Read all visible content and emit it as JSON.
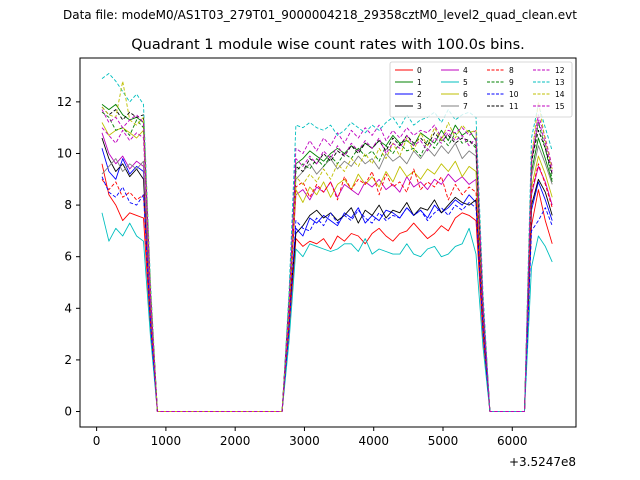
{
  "figure": {
    "supertitle": "Data file: modeM0/AS1T03_279T01_9000004218_29358cztM0_level2_quad_clean.evt"
  },
  "chart_data": {
    "type": "line",
    "title": "Quadrant 1 module wise count rates with 100.0s bins.",
    "xlabel": "",
    "ylabel": "",
    "x_offset_label": "+3.5247e8",
    "xlim": [
      -240,
      6920
    ],
    "ylim": [
      -0.6,
      13.7
    ],
    "xticks": [
      0,
      1000,
      2000,
      3000,
      4000,
      5000,
      6000
    ],
    "yticks": [
      0,
      2,
      4,
      6,
      8,
      10,
      12
    ],
    "grid": false,
    "legend": {
      "placement": "top-right",
      "columns": 4
    },
    "x": [
      77,
      177,
      277,
      377,
      477,
      577,
      677,
      777,
      877,
      977,
      1077,
      1177,
      1277,
      1377,
      1477,
      1577,
      1677,
      1777,
      1877,
      1977,
      2077,
      2177,
      2277,
      2377,
      2477,
      2577,
      2677,
      2777,
      2877,
      2977,
      3077,
      3177,
      3277,
      3377,
      3477,
      3577,
      3677,
      3777,
      3877,
      3977,
      4077,
      4177,
      4277,
      4377,
      4477,
      4577,
      4677,
      4777,
      4877,
      4977,
      5077,
      5177,
      5277,
      5377,
      5477,
      5577,
      5677,
      5777,
      5877,
      5977,
      6077,
      6177,
      6277,
      6377,
      6477,
      6577
    ],
    "series": [
      {
        "name": "0",
        "color": "#ff0000",
        "dash": "solid",
        "values": [
          9.6,
          8.4,
          8.0,
          7.4,
          7.7,
          7.6,
          7.5,
          3.2,
          0,
          0,
          0,
          0,
          0,
          0,
          0,
          0,
          0,
          0,
          0,
          0,
          0,
          0,
          0,
          0,
          0,
          0,
          0,
          3.1,
          6.7,
          6.4,
          6.6,
          6.5,
          6.7,
          6.3,
          6.8,
          6.6,
          6.9,
          6.8,
          6.5,
          6.9,
          7.1,
          6.8,
          6.6,
          6.9,
          7.0,
          7.3,
          7.0,
          6.7,
          6.9,
          7.2,
          7.0,
          7.5,
          7.7,
          7.6,
          7.4,
          2.9,
          0,
          0,
          0,
          0,
          0,
          0,
          7.2,
          8.6,
          7.4,
          6.5
        ]
      },
      {
        "name": "1",
        "color": "#008000",
        "dash": "solid",
        "values": [
          11.9,
          11.7,
          11.9,
          11.5,
          11.3,
          11.4,
          11.2,
          4.6,
          0,
          0,
          0,
          0,
          0,
          0,
          0,
          0,
          0,
          0,
          0,
          0,
          0,
          0,
          0,
          0,
          0,
          0,
          0,
          4.2,
          9.6,
          9.8,
          10.1,
          9.9,
          9.7,
          10.0,
          10.2,
          10.0,
          10.3,
          10.1,
          10.4,
          10.2,
          10.5,
          10.3,
          10.7,
          10.4,
          10.5,
          10.3,
          10.8,
          10.6,
          10.4,
          10.9,
          10.5,
          11.1,
          10.7,
          10.9,
          10.5,
          4.0,
          0,
          0,
          0,
          0,
          0,
          0,
          9.3,
          10.6,
          9.8,
          8.9
        ]
      },
      {
        "name": "2",
        "color": "#0000ff",
        "dash": "solid",
        "values": [
          10.2,
          9.3,
          9.0,
          9.8,
          9.2,
          9.5,
          9.3,
          3.8,
          0,
          0,
          0,
          0,
          0,
          0,
          0,
          0,
          0,
          0,
          0,
          0,
          0,
          0,
          0,
          0,
          0,
          0,
          0,
          3.6,
          7.1,
          6.8,
          7.5,
          7.3,
          7.6,
          7.4,
          7.2,
          7.7,
          7.5,
          7.9,
          7.3,
          7.6,
          7.4,
          7.8,
          7.7,
          7.5,
          7.9,
          7.6,
          7.8,
          7.5,
          8.0,
          7.7,
          7.9,
          8.2,
          8.0,
          8.4,
          8.1,
          3.4,
          0,
          0,
          0,
          0,
          0,
          0,
          7.8,
          8.9,
          8.2,
          7.4
        ]
      },
      {
        "name": "3",
        "color": "#000000",
        "dash": "solid",
        "values": [
          10.6,
          9.8,
          9.3,
          9.6,
          9.1,
          9.4,
          9.0,
          3.9,
          0,
          0,
          0,
          0,
          0,
          0,
          0,
          0,
          0,
          0,
          0,
          0,
          0,
          0,
          0,
          0,
          0,
          0,
          0,
          3.7,
          6.9,
          7.2,
          7.6,
          7.8,
          7.5,
          7.7,
          7.4,
          7.6,
          7.9,
          7.3,
          7.8,
          7.6,
          8.0,
          7.5,
          7.8,
          7.7,
          8.1,
          7.6,
          7.9,
          7.8,
          8.2,
          7.7,
          8.0,
          8.3,
          8.1,
          8.0,
          8.2,
          3.5,
          0,
          0,
          0,
          0,
          0,
          0,
          8.0,
          9.0,
          8.5,
          7.6
        ]
      },
      {
        "name": "4",
        "color": "#bf00bf",
        "dash": "solid",
        "values": [
          10.8,
          10.0,
          9.6,
          9.9,
          9.4,
          9.7,
          9.5,
          4.0,
          0,
          0,
          0,
          0,
          0,
          0,
          0,
          0,
          0,
          0,
          0,
          0,
          0,
          0,
          0,
          0,
          0,
          0,
          0,
          3.8,
          8.4,
          8.6,
          8.2,
          8.7,
          8.5,
          8.9,
          8.3,
          8.8,
          8.6,
          8.4,
          8.9,
          8.7,
          9.0,
          8.6,
          8.8,
          8.5,
          9.1,
          8.7,
          8.9,
          8.6,
          9.0,
          8.8,
          9.2,
          8.9,
          9.1,
          8.8,
          9.0,
          3.7,
          0,
          0,
          0,
          0,
          0,
          0,
          8.4,
          9.5,
          8.9,
          8.0
        ]
      },
      {
        "name": "5",
        "color": "#00bfbf",
        "dash": "solid",
        "values": [
          7.7,
          6.6,
          7.1,
          6.8,
          7.3,
          6.8,
          6.6,
          2.9,
          0,
          0,
          0,
          0,
          0,
          0,
          0,
          0,
          0,
          0,
          0,
          0,
          0,
          0,
          0,
          0,
          0,
          0,
          0,
          2.7,
          6.3,
          6.0,
          6.5,
          6.4,
          6.3,
          6.2,
          6.3,
          6.5,
          6.5,
          6.2,
          6.7,
          6.1,
          6.3,
          6.2,
          6.1,
          6.1,
          6.5,
          6.1,
          6.0,
          6.3,
          6.4,
          6.0,
          6.1,
          6.4,
          6.5,
          7.1,
          6.1,
          2.5,
          0,
          0,
          0,
          0,
          0,
          0,
          5.6,
          6.8,
          6.4,
          5.8
        ]
      },
      {
        "name": "6",
        "color": "#bfbf00",
        "dash": "solid",
        "values": [
          11.2,
          10.7,
          10.9,
          11.0,
          10.8,
          10.6,
          10.9,
          4.4,
          0,
          0,
          0,
          0,
          0,
          0,
          0,
          0,
          0,
          0,
          0,
          0,
          0,
          0,
          0,
          0,
          0,
          0,
          0,
          4.0,
          8.6,
          8.1,
          8.7,
          8.4,
          8.9,
          8.3,
          8.8,
          9.0,
          8.6,
          9.2,
          8.8,
          9.1,
          8.7,
          9.3,
          8.9,
          9.5,
          9.1,
          9.3,
          9.0,
          9.4,
          9.2,
          9.6,
          9.3,
          9.7,
          9.1,
          9.5,
          9.3,
          3.9,
          0,
          0,
          0,
          0,
          0,
          0,
          8.7,
          9.9,
          9.2,
          8.3
        ]
      },
      {
        "name": "7",
        "color": "#808080",
        "dash": "solid",
        "values": [
          9.2,
          9.5,
          9.8,
          9.3,
          9.6,
          9.4,
          9.7,
          4.0,
          0,
          0,
          0,
          0,
          0,
          0,
          0,
          0,
          0,
          0,
          0,
          0,
          0,
          0,
          0,
          0,
          0,
          0,
          0,
          3.9,
          9.0,
          9.3,
          9.6,
          9.2,
          9.5,
          9.8,
          9.4,
          9.7,
          9.5,
          9.9,
          9.6,
          9.8,
          9.4,
          10.0,
          9.7,
          9.9,
          9.6,
          10.1,
          9.8,
          10.2,
          9.9,
          10.3,
          10.0,
          10.4,
          9.8,
          10.1,
          9.9,
          4.1,
          0,
          0,
          0,
          0,
          0,
          0,
          9.1,
          10.3,
          9.6,
          8.8
        ]
      },
      {
        "name": "8",
        "color": "#ff0000",
        "dash": "dashed",
        "values": [
          9.0,
          8.6,
          8.9,
          8.3,
          8.5,
          8.2,
          8.4,
          3.5,
          0,
          0,
          0,
          0,
          0,
          0,
          0,
          0,
          0,
          0,
          0,
          0,
          0,
          0,
          0,
          0,
          0,
          0,
          0,
          3.4,
          8.7,
          8.9,
          8.3,
          8.8,
          8.5,
          8.9,
          8.2,
          9.1,
          8.6,
          9.0,
          8.8,
          9.3,
          8.4,
          9.2,
          8.7,
          8.9,
          8.5,
          9.4,
          8.6,
          8.9,
          8.7,
          9.1,
          8.2,
          8.8,
          8.4,
          8.7,
          8.5,
          3.3,
          0,
          0,
          0,
          0,
          0,
          0,
          8.5,
          9.6,
          8.8,
          7.9
        ]
      },
      {
        "name": "9",
        "color": "#008000",
        "dash": "dashed",
        "values": [
          11.6,
          11.4,
          10.9,
          11.0,
          10.7,
          11.3,
          11.0,
          4.5,
          0,
          0,
          0,
          0,
          0,
          0,
          0,
          0,
          0,
          0,
          0,
          0,
          0,
          0,
          0,
          0,
          0,
          0,
          0,
          4.1,
          9.3,
          9.6,
          9.4,
          9.8,
          9.5,
          9.9,
          9.6,
          10.0,
          9.8,
          10.2,
          9.9,
          10.1,
          9.7,
          10.3,
          10.0,
          10.4,
          10.1,
          10.2,
          9.9,
          10.5,
          10.2,
          10.6,
          10.3,
          10.8,
          10.4,
          10.5,
          10.2,
          4.0,
          0,
          0,
          0,
          0,
          0,
          0,
          9.6,
          11.2,
          10.2,
          9.0
        ]
      },
      {
        "name": "10",
        "color": "#0000ff",
        "dash": "dashed",
        "values": [
          9.1,
          8.5,
          8.3,
          8.7,
          8.1,
          8.0,
          8.4,
          3.4,
          0,
          0,
          0,
          0,
          0,
          0,
          0,
          0,
          0,
          0,
          0,
          0,
          0,
          0,
          0,
          0,
          0,
          0,
          0,
          3.2,
          7.4,
          7.1,
          7.0,
          7.5,
          7.2,
          7.7,
          7.3,
          7.6,
          7.4,
          7.8,
          7.5,
          7.3,
          7.7,
          7.4,
          7.6,
          7.5,
          7.9,
          7.6,
          7.8,
          7.4,
          7.7,
          7.9,
          7.6,
          8.0,
          7.8,
          8.1,
          7.9,
          3.2,
          0,
          0,
          0,
          0,
          0,
          0,
          7.0,
          7.4,
          7.9,
          7.2
        ]
      },
      {
        "name": "11",
        "color": "#000000",
        "dash": "dashed",
        "values": [
          11.8,
          11.5,
          11.7,
          11.3,
          11.6,
          11.4,
          11.5,
          4.6,
          0,
          0,
          0,
          0,
          0,
          0,
          0,
          0,
          0,
          0,
          0,
          0,
          0,
          0,
          0,
          0,
          0,
          0,
          0,
          4.3,
          9.5,
          9.3,
          9.8,
          9.6,
          10.0,
          9.7,
          10.1,
          9.9,
          10.3,
          10.0,
          10.4,
          10.2,
          10.5,
          10.1,
          10.6,
          10.3,
          10.7,
          10.4,
          10.6,
          10.3,
          10.8,
          10.5,
          10.7,
          10.4,
          10.6,
          10.5,
          10.3,
          4.1,
          0,
          0,
          0,
          0,
          0,
          0,
          9.7,
          10.9,
          10.2,
          9.2
        ]
      },
      {
        "name": "12",
        "color": "#bf00bf",
        "dash": "dashed",
        "values": [
          11.0,
          10.7,
          10.4,
          10.9,
          10.5,
          10.8,
          10.6,
          4.3,
          0,
          0,
          0,
          0,
          0,
          0,
          0,
          0,
          0,
          0,
          0,
          0,
          0,
          0,
          0,
          0,
          0,
          0,
          0,
          4.2,
          10.2,
          10.0,
          10.5,
          10.1,
          10.6,
          10.3,
          10.8,
          10.4,
          10.9,
          10.6,
          11.0,
          10.7,
          11.1,
          10.5,
          10.9,
          10.6,
          11.0,
          10.7,
          10.9,
          10.8,
          11.1,
          10.6,
          10.9,
          10.8,
          11.0,
          10.7,
          10.9,
          4.3,
          0,
          0,
          0,
          0,
          0,
          0,
          9.9,
          11.5,
          10.6,
          9.5
        ]
      },
      {
        "name": "13",
        "color": "#00bfbf",
        "dash": "dashed",
        "values": [
          12.9,
          13.1,
          12.8,
          12.4,
          12.0,
          12.3,
          11.9,
          5.0,
          0,
          0,
          0,
          0,
          0,
          0,
          0,
          0,
          0,
          0,
          0,
          0,
          0,
          0,
          0,
          0,
          0,
          0,
          0,
          4.6,
          11.1,
          11.0,
          11.2,
          11.0,
          10.9,
          11.1,
          10.7,
          10.9,
          11.2,
          11.0,
          10.8,
          11.1,
          10.9,
          11.2,
          11.4,
          11.0,
          11.5,
          11.1,
          11.3,
          11.4,
          11.6,
          11.2,
          11.7,
          11.3,
          11.5,
          11.6,
          11.4,
          4.6,
          0,
          0,
          0,
          0,
          0,
          0,
          10.6,
          11.9,
          11.0,
          10.1
        ]
      },
      {
        "name": "14",
        "color": "#bfbf00",
        "dash": "dashed",
        "values": [
          11.8,
          11.5,
          11.4,
          12.8,
          11.3,
          11.1,
          11.4,
          4.7,
          0,
          0,
          0,
          0,
          0,
          0,
          0,
          0,
          0,
          0,
          0,
          0,
          0,
          0,
          0,
          0,
          0,
          0,
          0,
          4.0,
          9.1,
          8.8,
          9.2,
          8.9,
          9.4,
          9.0,
          9.6,
          9.3,
          9.8,
          9.5,
          10.0,
          9.6,
          10.2,
          9.8,
          10.4,
          9.9,
          10.6,
          10.1,
          10.8,
          10.3,
          11.0,
          10.5,
          11.2,
          10.6,
          11.1,
          10.8,
          10.9,
          4.2,
          0,
          0,
          0,
          0,
          0,
          0,
          9.8,
          12.0,
          10.5,
          9.4
        ]
      },
      {
        "name": "15",
        "color": "#bf00bf",
        "dash": "dashed",
        "values": [
          11.7,
          11.2,
          11.4,
          11.0,
          11.3,
          11.5,
          11.2,
          4.5,
          0,
          0,
          0,
          0,
          0,
          0,
          0,
          0,
          0,
          0,
          0,
          0,
          0,
          0,
          0,
          0,
          0,
          0,
          0,
          4.1,
          9.8,
          9.5,
          9.9,
          9.6,
          10.1,
          9.8,
          10.3,
          9.9,
          10.4,
          10.1,
          10.5,
          10.2,
          10.6,
          10.0,
          10.4,
          10.2,
          10.7,
          10.3,
          10.5,
          10.1,
          10.6,
          10.4,
          10.8,
          10.5,
          10.7,
          10.3,
          10.6,
          4.2,
          0,
          0,
          0,
          0,
          0,
          0,
          9.7,
          11.3,
          10.4,
          9.3
        ]
      }
    ]
  }
}
